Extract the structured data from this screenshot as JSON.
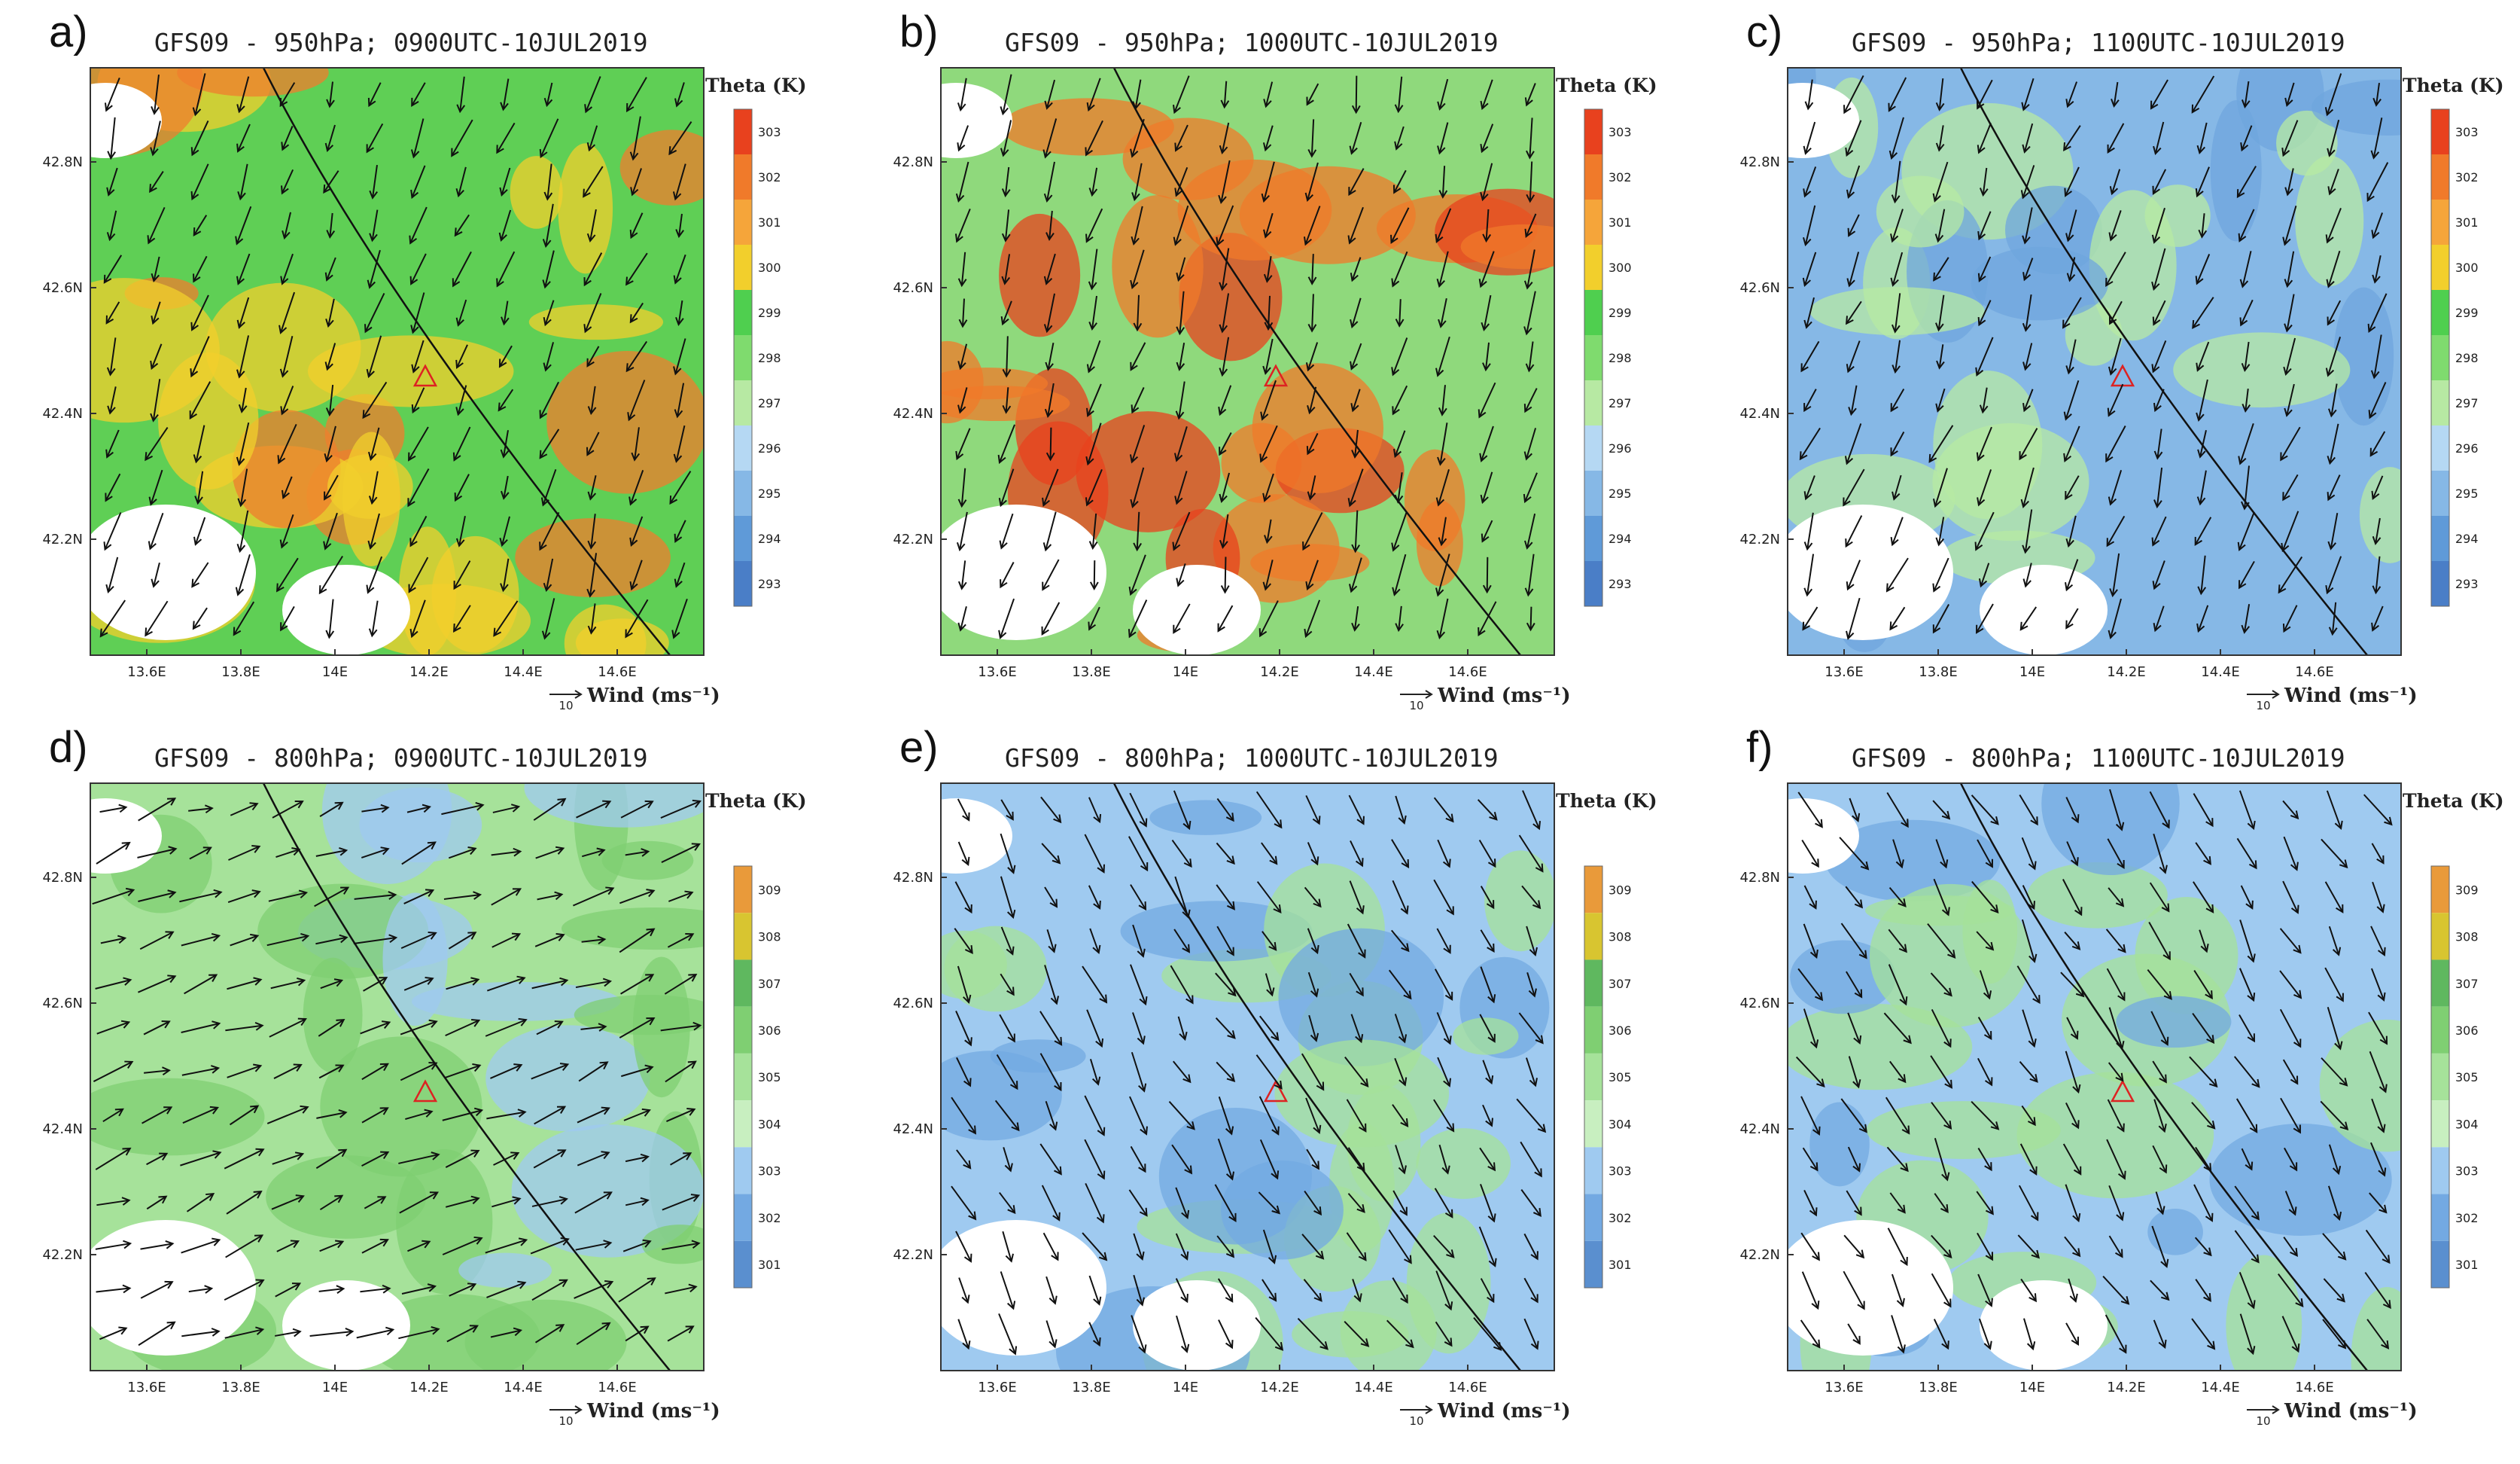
{
  "figure": {
    "panels": [
      {
        "letter": "a)",
        "title": "GFS09 - 950hPa; 0900UTC-10JUL2019",
        "colorbar_ticks": [
          "303",
          "302",
          "301",
          "300",
          "299",
          "298",
          "297",
          "296",
          "295",
          "294",
          "293"
        ],
        "colorbar_colors": [
          "#e8411e",
          "#f07a2a",
          "#f5a53a",
          "#f2cf2c",
          "#4fcf4f",
          "#7fdb6e",
          "#b7e9a3",
          "#b5d8f3",
          "#86b8e6",
          "#5f9ad8",
          "#4a7ec7"
        ],
        "dominant_fill": "#5fcf55",
        "warm_fill": "#f2cf2c",
        "hot_fill": "#ef7d2d",
        "wind_dir_deg": 200
      },
      {
        "letter": "b)",
        "title": "GFS09 - 950hPa; 1000UTC-10JUL2019",
        "colorbar_ticks": [
          "303",
          "302",
          "301",
          "300",
          "299",
          "298",
          "297",
          "296",
          "295",
          "294",
          "293"
        ],
        "colorbar_colors": [
          "#e8411e",
          "#f07a2a",
          "#f5a53a",
          "#f2cf2c",
          "#4fcf4f",
          "#7fdb6e",
          "#b7e9a3",
          "#b5d8f3",
          "#86b8e6",
          "#5f9ad8",
          "#4a7ec7"
        ],
        "dominant_fill": "#8fd97c",
        "warm_fill": "#f07a2a",
        "hot_fill": "#e8411e",
        "wind_dir_deg": 195
      },
      {
        "letter": "c)",
        "title": "GFS09 - 950hPa; 1100UTC-10JUL2019",
        "colorbar_ticks": [
          "303",
          "302",
          "301",
          "300",
          "299",
          "298",
          "297",
          "296",
          "295",
          "294",
          "293"
        ],
        "colorbar_colors": [
          "#e8411e",
          "#f07a2a",
          "#f5a53a",
          "#f2cf2c",
          "#4fcf4f",
          "#7fdb6e",
          "#b7e9a3",
          "#b5d8f3",
          "#86b8e6",
          "#5f9ad8",
          "#4a7ec7"
        ],
        "dominant_fill": "#86b8e6",
        "warm_fill": "#b7e9a3",
        "hot_fill": "#6fa6de",
        "wind_dir_deg": 200
      },
      {
        "letter": "d)",
        "title": "GFS09 - 800hPa; 0900UTC-10JUL2019",
        "colorbar_ticks": [
          "309",
          "308",
          "307",
          "306",
          "305",
          "304",
          "303",
          "302",
          "301"
        ],
        "colorbar_colors": [
          "#e99a3a",
          "#d8c530",
          "#5fb85f",
          "#7fcf72",
          "#a6e29a",
          "#c8efc0",
          "#9fcaf0",
          "#73a9e2",
          "#5a8fcf"
        ],
        "dominant_fill": "#a6e29a",
        "warm_fill": "#7fcf72",
        "hot_fill": "#9fcaf0",
        "wind_dir_deg": 70
      },
      {
        "letter": "e)",
        "title": "GFS09 - 800hPa; 1000UTC-10JUL2019",
        "colorbar_ticks": [
          "309",
          "308",
          "307",
          "306",
          "305",
          "304",
          "303",
          "302",
          "301"
        ],
        "colorbar_colors": [
          "#e99a3a",
          "#d8c530",
          "#5fb85f",
          "#7fcf72",
          "#a6e29a",
          "#c8efc0",
          "#9fcaf0",
          "#73a9e2",
          "#5a8fcf"
        ],
        "dominant_fill": "#9fcaf0",
        "warm_fill": "#a6e29a",
        "hot_fill": "#73a9e2",
        "wind_dir_deg": 150
      },
      {
        "letter": "f)",
        "title": "GFS09 - 800hPa; 1100UTC-10JUL2019",
        "colorbar_ticks": [
          "309",
          "308",
          "307",
          "306",
          "305",
          "304",
          "303",
          "302",
          "301"
        ],
        "colorbar_colors": [
          "#e99a3a",
          "#d8c530",
          "#5fb85f",
          "#7fcf72",
          "#a6e29a",
          "#c8efc0",
          "#9fcaf0",
          "#73a9e2",
          "#5a8fcf"
        ],
        "dominant_fill": "#9fcaf0",
        "warm_fill": "#a6e29a",
        "hot_fill": "#73a9e2",
        "wind_dir_deg": 150
      }
    ],
    "colorbar_title": "Theta (K)",
    "lon_ticks": [
      "13.6E",
      "13.8E",
      "14E",
      "14.2E",
      "14.4E",
      "14.6E"
    ],
    "lat_ticks": [
      "42.8N",
      "42.6N",
      "42.4N",
      "42.2N"
    ],
    "wind_label": "Wind (ms⁻¹)",
    "wind_ref_value": "10"
  }
}
